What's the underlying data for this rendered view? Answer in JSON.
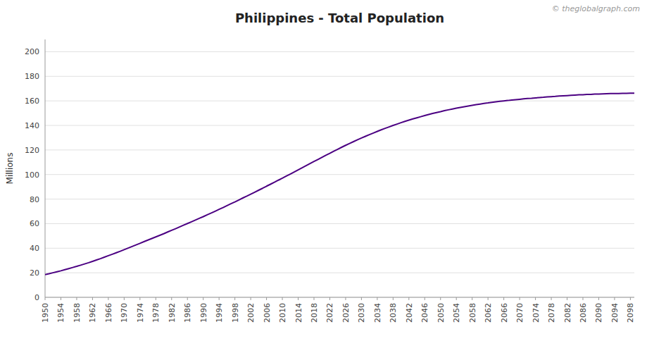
{
  "chart_data": {
    "type": "line",
    "title": "Philippines - Total Population",
    "y_label": "Millions",
    "annotations": [
      "© theglobalgraph.com"
    ],
    "color": "#4B0082",
    "grid": true,
    "xlim": [
      1950,
      2099
    ],
    "xticks": [
      1950,
      1954,
      1958,
      1962,
      1966,
      1970,
      1974,
      1978,
      1982,
      1986,
      1990,
      1994,
      1998,
      2002,
      2006,
      2010,
      2014,
      2018,
      2022,
      2026,
      2030,
      2034,
      2038,
      2042,
      2046,
      2050,
      2054,
      2058,
      2062,
      2066,
      2070,
      2074,
      2078,
      2082,
      2086,
      2090,
      2094,
      2098
    ],
    "ylim": [
      0,
      210
    ],
    "yticks": [
      0,
      20,
      40,
      60,
      80,
      100,
      120,
      140,
      160,
      180,
      200
    ],
    "x": [
      1950,
      1951,
      1952,
      1953,
      1954,
      1955,
      1956,
      1957,
      1958,
      1959,
      1960,
      1961,
      1962,
      1963,
      1964,
      1965,
      1966,
      1967,
      1968,
      1969,
      1970,
      1971,
      1972,
      1973,
      1974,
      1975,
      1976,
      1977,
      1978,
      1979,
      1980,
      1981,
      1982,
      1983,
      1984,
      1985,
      1986,
      1987,
      1988,
      1989,
      1990,
      1991,
      1992,
      1993,
      1994,
      1995,
      1996,
      1997,
      1998,
      1999,
      2000,
      2001,
      2002,
      2003,
      2004,
      2005,
      2006,
      2007,
      2008,
      2009,
      2010,
      2011,
      2012,
      2013,
      2014,
      2015,
      2016,
      2017,
      2018,
      2019,
      2020,
      2021,
      2022,
      2023,
      2024,
      2025,
      2026,
      2027,
      2028,
      2029,
      2030,
      2031,
      2032,
      2033,
      2034,
      2035,
      2036,
      2037,
      2038,
      2039,
      2040,
      2041,
      2042,
      2043,
      2044,
      2045,
      2046,
      2047,
      2048,
      2049,
      2050,
      2051,
      2052,
      2053,
      2054,
      2055,
      2056,
      2057,
      2058,
      2059,
      2060,
      2061,
      2062,
      2063,
      2064,
      2065,
      2066,
      2067,
      2068,
      2069,
      2070,
      2071,
      2072,
      2073,
      2074,
      2075,
      2076,
      2077,
      2078,
      2079,
      2080,
      2081,
      2082,
      2083,
      2084,
      2085,
      2086,
      2087,
      2088,
      2089,
      2090,
      2091,
      2092,
      2093,
      2094,
      2095,
      2096,
      2097,
      2098,
      2099
    ],
    "values": [
      18.5,
      19.2,
      20.0,
      20.8,
      21.6,
      22.5,
      23.4,
      24.3,
      25.2,
      26.2,
      27.2,
      28.2,
      29.3,
      30.4,
      31.5,
      32.7,
      33.9,
      35.1,
      36.3,
      37.5,
      38.8,
      40.1,
      41.4,
      42.7,
      44.0,
      45.3,
      46.6,
      47.9,
      49.2,
      50.5,
      51.8,
      53.2,
      54.6,
      55.9,
      57.3,
      58.7,
      60.1,
      61.5,
      62.9,
      64.3,
      65.7,
      67.2,
      68.6,
      70.1,
      71.6,
      73.1,
      74.7,
      76.2,
      77.7,
      79.3,
      80.9,
      82.4,
      84.0,
      85.6,
      87.2,
      88.8,
      90.5,
      92.1,
      93.7,
      95.4,
      97.0,
      98.7,
      100.4,
      102.1,
      103.8,
      105.5,
      107.2,
      108.9,
      110.6,
      112.3,
      114.0,
      115.7,
      117.3,
      119.0,
      120.6,
      122.2,
      123.8,
      125.3,
      126.8,
      128.3,
      129.7,
      131.1,
      132.5,
      133.8,
      135.1,
      136.4,
      137.6,
      138.8,
      140.0,
      141.1,
      142.2,
      143.3,
      144.3,
      145.3,
      146.2,
      147.1,
      148.0,
      148.9,
      149.7,
      150.5,
      151.2,
      152.0,
      152.7,
      153.4,
      154.0,
      154.6,
      155.2,
      155.8,
      156.4,
      156.9,
      157.4,
      157.9,
      158.3,
      158.8,
      159.2,
      159.6,
      160.0,
      160.3,
      160.7,
      161.0,
      161.3,
      161.6,
      161.9,
      162.1,
      162.4,
      162.7,
      162.9,
      163.2,
      163.4,
      163.6,
      163.9,
      164.1,
      164.3,
      164.5,
      164.7,
      164.9,
      165.0,
      165.2,
      165.3,
      165.5,
      165.6,
      165.7,
      165.8,
      165.9,
      166.0,
      166.0,
      166.1,
      166.1,
      166.2,
      166.2
    ]
  }
}
